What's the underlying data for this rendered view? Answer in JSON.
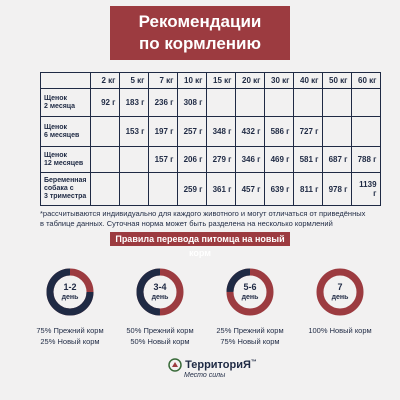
{
  "header": {
    "title_line1": "Рекомендации",
    "title_line2": "по кормлению"
  },
  "table": {
    "columns": [
      "2 кг",
      "5 кг",
      "7 кг",
      "10 кг",
      "15 кг",
      "20 кг",
      "30 кг",
      "40 кг",
      "50 кг",
      "60 кг"
    ],
    "rows": [
      {
        "label": [
          "Щенок",
          "2 месяца"
        ],
        "cells": [
          "92 г",
          "183 г",
          "236 г",
          "308 г",
          null,
          null,
          null,
          null,
          null,
          null
        ]
      },
      {
        "label": [
          "Щенок",
          "6 месяцев"
        ],
        "cells": [
          null,
          "153 г",
          "197 г",
          "257 г",
          "348 г",
          "432 г",
          "586 г",
          "727 г",
          null,
          null
        ]
      },
      {
        "label": [
          "Щенок",
          "12 месяцев"
        ],
        "cells": [
          null,
          null,
          "157 г",
          "206 г",
          "279 г",
          "346 г",
          "469 г",
          "581 г",
          "687 г",
          "788 г"
        ]
      },
      {
        "label": [
          "Беременная",
          "собака с",
          "3 триместра"
        ],
        "cells": [
          null,
          null,
          null,
          "259 г",
          "361 г",
          "457 г",
          "639 г",
          "811 г",
          "978 г",
          "1139 г"
        ]
      }
    ]
  },
  "footnote": "*рассчитываются индивидуально для каждого животного и могут отличаться от приведённых в таблице данных. Суточная норма может быть разделена на несколько кормлений",
  "transition": {
    "title": "Правила перевода питомца на новый корм",
    "steps": [
      {
        "day": "1-2",
        "unit": "день",
        "lines": [
          "75% Прежний корм",
          "25% Новый корм"
        ]
      },
      {
        "day": "3-4",
        "unit": "день",
        "lines": [
          "50% Прежний корм",
          "50% Новый корм"
        ]
      },
      {
        "day": "5-6",
        "unit": "день",
        "lines": [
          "25% Прежний корм",
          "75% Новый корм"
        ]
      },
      {
        "day": "7",
        "unit": "день",
        "lines": [
          "100% Новый корм"
        ]
      }
    ]
  },
  "logo": {
    "name": "ТерриториЯ",
    "trademark": "™",
    "tagline": "Место силы"
  }
}
